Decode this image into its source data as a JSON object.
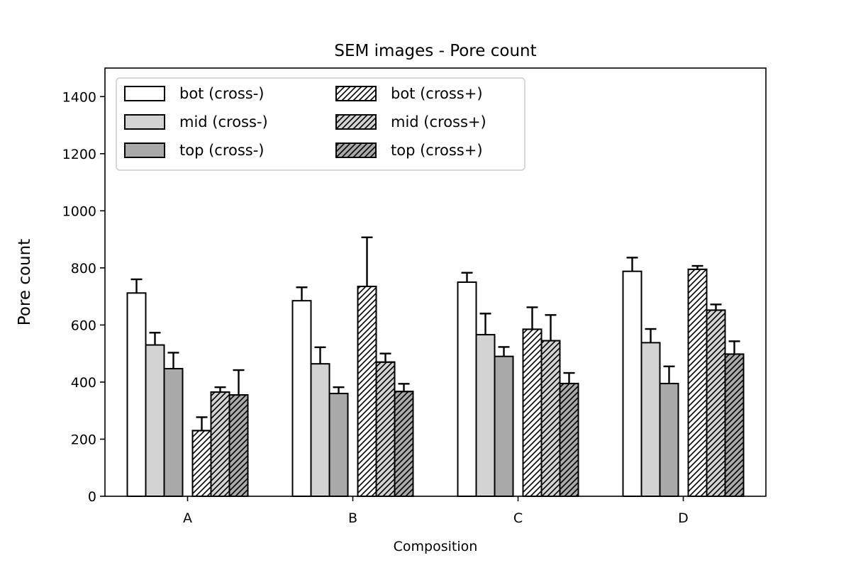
{
  "chart_data": {
    "type": "bar",
    "title": "SEM images - Pore count",
    "xlabel": "Composition",
    "ylabel": "Pore count",
    "categories": [
      "A",
      "B",
      "C",
      "D"
    ],
    "ylim": [
      0,
      1500
    ],
    "yticks": [
      0,
      200,
      400,
      600,
      800,
      1000,
      1200,
      1400
    ],
    "grid": false,
    "legend_position": "top-left",
    "series": [
      {
        "name": "bot (cross-)",
        "fill": "#ffffff",
        "hatch": false,
        "values": [
          712,
          685,
          750,
          788
        ],
        "errors": [
          48,
          47,
          33,
          48
        ]
      },
      {
        "name": "mid (cross-)",
        "fill": "#d3d3d3",
        "hatch": false,
        "values": [
          530,
          464,
          566,
          538
        ],
        "errors": [
          43,
          58,
          74,
          48
        ]
      },
      {
        "name": "top (cross-)",
        "fill": "#a9a9a9",
        "hatch": false,
        "values": [
          447,
          360,
          490,
          395
        ],
        "errors": [
          56,
          22,
          33,
          60
        ]
      },
      {
        "name": "bot (cross+)",
        "fill": "#ffffff",
        "hatch": true,
        "values": [
          230,
          735,
          585,
          795
        ],
        "errors": [
          47,
          172,
          77,
          12
        ]
      },
      {
        "name": "mid (cross+)",
        "fill": "#d3d3d3",
        "hatch": true,
        "values": [
          365,
          470,
          545,
          652
        ],
        "errors": [
          17,
          30,
          90,
          20
        ]
      },
      {
        "name": "top (cross+)",
        "fill": "#a9a9a9",
        "hatch": true,
        "values": [
          355,
          367,
          395,
          498
        ],
        "errors": [
          87,
          27,
          37,
          45
        ]
      }
    ]
  }
}
